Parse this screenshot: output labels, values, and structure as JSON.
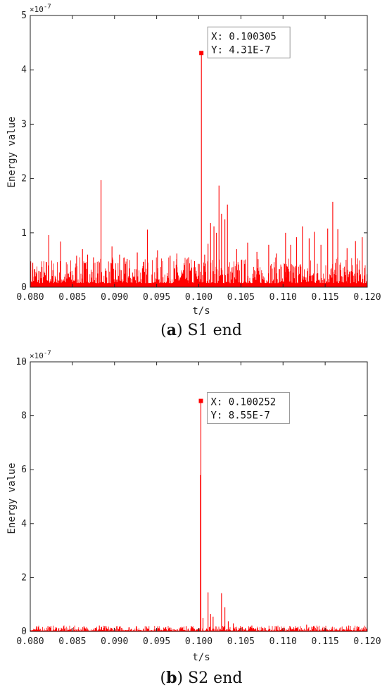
{
  "chart_data": [
    {
      "type": "line",
      "panel": "a",
      "caption_letter": "a",
      "caption_text": "S1 end",
      "title": "",
      "xlabel": "t/s",
      "ylabel": "Energy value",
      "exponent_label": "×10",
      "exponent_power": "-7",
      "xlim": [
        0.08,
        0.12
      ],
      "ylim": [
        0,
        5
      ],
      "x_ticks": [
        "0.080",
        "0.085",
        "0.090",
        "0.095",
        "0.100",
        "0.105",
        "0.110",
        "0.115",
        "0.120"
      ],
      "y_ticks": [
        "0",
        "1",
        "2",
        "3",
        "4",
        "5"
      ],
      "color": "#ff0000",
      "grid": false,
      "noise_level": 0.3,
      "series": [
        {
          "x": [
            0.0803,
            0.0822,
            0.0836,
            0.0855,
            0.0862,
            0.0868,
            0.0875,
            0.0884,
            0.0897,
            0.0906,
            0.0915,
            0.0927,
            0.0939,
            0.0951,
            0.0966,
            0.0974,
            0.0988,
            0.0995,
            0.10005,
            0.10031,
            0.1007,
            0.1011,
            0.1014,
            0.1018,
            0.1021,
            0.1024,
            0.1027,
            0.1031,
            0.1034,
            0.1045,
            0.1058,
            0.1069,
            0.1083,
            0.1092,
            0.1103,
            0.1109,
            0.1116,
            0.1123,
            0.1131,
            0.1137,
            0.1145,
            0.1153,
            0.1159,
            0.1165,
            0.1176,
            0.1186,
            0.1194
          ],
          "y": [
            0.45,
            0.96,
            0.84,
            0.58,
            0.7,
            0.6,
            0.55,
            1.97,
            0.75,
            0.6,
            0.52,
            0.64,
            1.06,
            0.68,
            0.58,
            0.62,
            0.55,
            0.48,
            0.42,
            4.31,
            0.6,
            0.8,
            1.18,
            1.12,
            1.0,
            1.87,
            1.35,
            1.25,
            1.52,
            0.7,
            0.82,
            0.65,
            0.78,
            0.62,
            1.0,
            0.78,
            0.92,
            1.12,
            0.9,
            1.02,
            0.78,
            1.08,
            1.57,
            1.07,
            0.72,
            0.85,
            0.92
          ]
        }
      ],
      "datatip": {
        "x_label": "X: 0.100305",
        "y_label": "Y: 4.31E-7",
        "x": 0.100305,
        "y": 4.31
      }
    },
    {
      "type": "line",
      "panel": "b",
      "caption_letter": "b",
      "caption_text": "S2 end",
      "title": "",
      "xlabel": "t/s",
      "ylabel": "Energy value",
      "exponent_label": "×10",
      "exponent_power": "-7",
      "xlim": [
        0.08,
        0.12
      ],
      "ylim": [
        0,
        10
      ],
      "x_ticks": [
        "0.080",
        "0.085",
        "0.090",
        "0.095",
        "0.100",
        "0.105",
        "0.110",
        "0.115",
        "0.120"
      ],
      "y_ticks": [
        "0",
        "2",
        "4",
        "6",
        "8",
        "10"
      ],
      "color": "#ff0000",
      "grid": false,
      "noise_level": 0.12,
      "series": [
        {
          "x": [
            0.0821,
            0.0882,
            0.0938,
            0.0985,
            0.1002,
            0.10025,
            0.1005,
            0.1011,
            0.1014,
            0.1017,
            0.1027,
            0.1031,
            0.1035,
            0.1041,
            0.1063,
            0.1092,
            0.1128,
            0.1178
          ],
          "y": [
            0.2,
            0.22,
            0.18,
            0.2,
            5.8,
            8.55,
            0.5,
            1.45,
            0.65,
            0.55,
            1.42,
            0.9,
            0.38,
            0.3,
            0.22,
            0.2,
            0.25,
            0.22
          ]
        }
      ],
      "datatip": {
        "x_label": "X: 0.100252",
        "y_label": "Y: 8.55E-7",
        "x": 0.100252,
        "y": 8.55
      }
    }
  ]
}
